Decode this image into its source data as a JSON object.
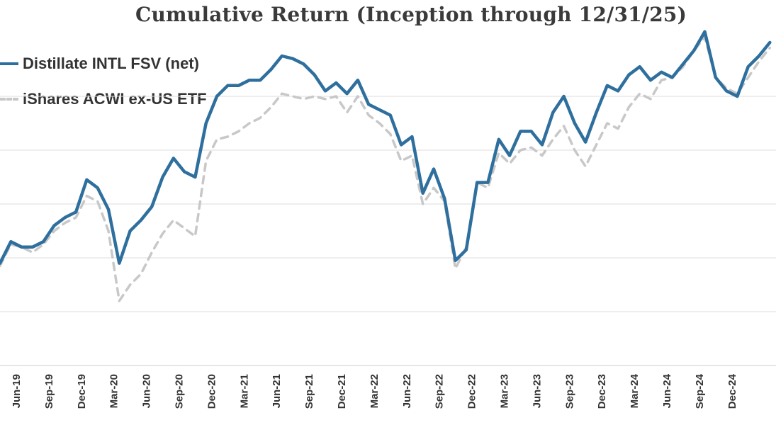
{
  "chart_data": {
    "type": "line",
    "title": "Cumulative Return (Inception through 12/31/25)",
    "xlabel": "",
    "ylabel": "",
    "grid": true,
    "legend_position": "top-left",
    "tick_labels": [
      "Jun-19",
      "Sep-19",
      "Dec-19",
      "Mar-20",
      "Jun-20",
      "Sep-20",
      "Dec-20",
      "Mar-21",
      "Jun-21",
      "Sep-21",
      "Dec-21",
      "Mar-22",
      "Jun-22",
      "Sep-22",
      "Dec-22",
      "Mar-23",
      "Jun-23",
      "Sep-23",
      "Dec-23",
      "Mar-24",
      "Jun-24",
      "Sep-24",
      "Dec-24"
    ],
    "x": [
      0,
      1,
      2,
      3,
      4,
      5,
      6,
      7,
      8,
      9,
      10,
      11,
      12,
      13,
      14,
      15,
      16,
      17,
      18,
      19,
      20,
      21,
      22,
      23,
      24,
      25,
      26,
      27,
      28,
      29,
      30,
      31,
      32,
      33,
      34,
      35,
      36,
      37,
      38,
      39,
      40,
      41,
      42,
      43,
      44,
      45,
      46,
      47,
      48,
      49,
      50,
      51,
      52,
      53,
      54,
      55,
      56,
      57,
      58,
      59,
      60,
      61,
      62,
      63,
      64,
      65,
      66,
      67,
      68,
      69,
      70,
      71
    ],
    "ylim": [
      0,
      8
    ],
    "series": [
      {
        "name": "Distillate INTL FSV (net)",
        "color": "#2e6f9e",
        "style": "solid",
        "values": [
          1.9,
          2.3,
          2.2,
          2.2,
          2.3,
          2.6,
          2.75,
          2.85,
          3.45,
          3.3,
          2.9,
          1.9,
          2.5,
          2.7,
          2.95,
          3.5,
          3.85,
          3.6,
          3.5,
          4.5,
          5.0,
          5.2,
          5.2,
          5.3,
          5.3,
          5.5,
          5.75,
          5.7,
          5.6,
          5.4,
          5.1,
          5.25,
          5.05,
          5.3,
          4.85,
          4.75,
          4.65,
          4.1,
          4.25,
          3.2,
          3.65,
          3.1,
          1.95,
          2.15,
          3.4,
          3.4,
          4.2,
          3.9,
          4.35,
          4.35,
          4.1,
          4.7,
          5.0,
          4.5,
          4.15,
          4.7,
          5.2,
          5.1,
          5.4,
          5.55,
          5.3,
          5.45,
          5.35,
          5.6,
          5.85,
          6.2,
          5.35,
          5.1,
          5.0,
          5.55,
          5.75,
          6.0
        ]
      },
      {
        "name": "iShares ACWI ex-US ETF",
        "color": "#c8c8c8",
        "style": "dashed",
        "values": [
          1.85,
          2.25,
          2.2,
          2.1,
          2.25,
          2.5,
          2.65,
          2.75,
          3.15,
          3.05,
          2.5,
          1.2,
          1.5,
          1.7,
          2.1,
          2.45,
          2.7,
          2.55,
          2.4,
          3.8,
          4.2,
          4.25,
          4.35,
          4.5,
          4.6,
          4.8,
          5.05,
          5.0,
          4.95,
          5.0,
          4.95,
          5.0,
          4.7,
          5.0,
          4.65,
          4.5,
          4.3,
          3.8,
          3.9,
          3.0,
          3.3,
          3.05,
          1.8,
          2.2,
          3.4,
          3.3,
          3.95,
          3.75,
          4.0,
          4.05,
          3.9,
          4.2,
          4.45,
          4.0,
          3.7,
          4.1,
          4.5,
          4.4,
          4.8,
          5.05,
          4.95,
          5.3,
          5.35,
          5.55,
          5.85,
          6.1,
          5.35,
          5.15,
          5.05,
          5.35,
          5.65,
          5.9
        ]
      }
    ]
  }
}
